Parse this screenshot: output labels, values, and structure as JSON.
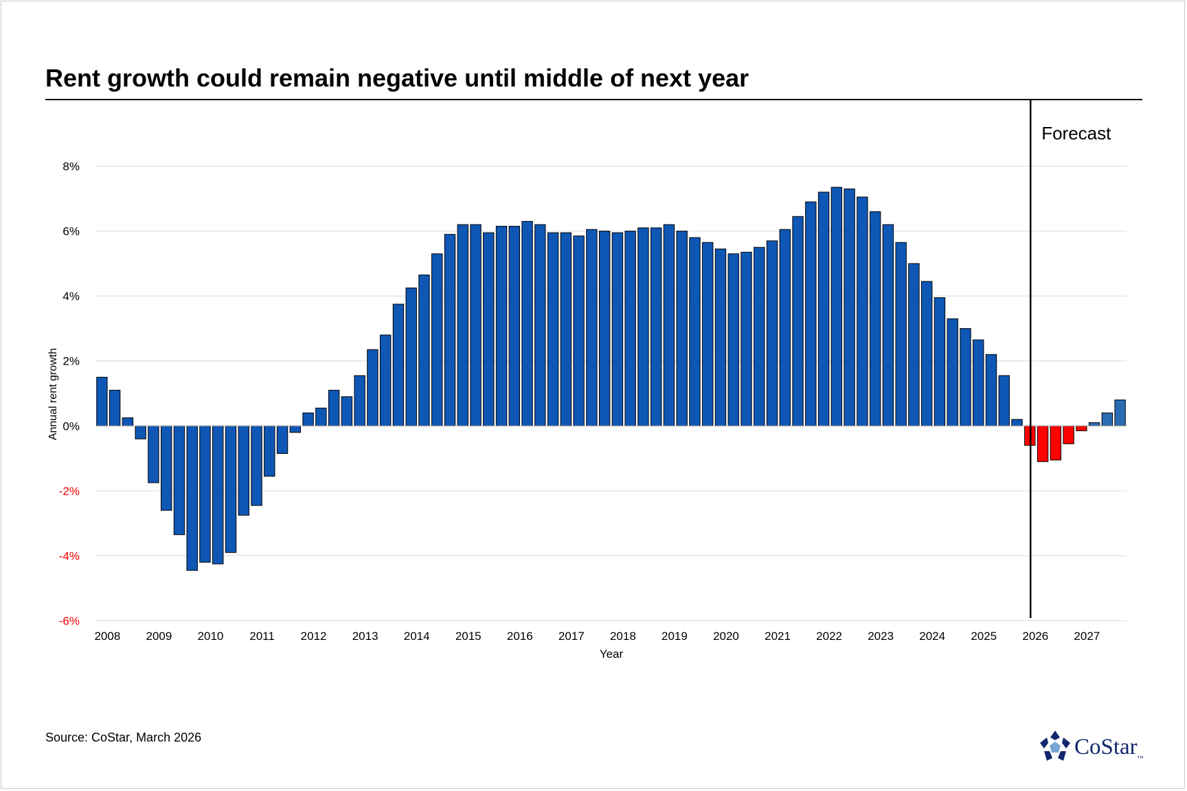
{
  "title": "Rent growth could remain negative until middle of next year",
  "source": "Source: CoStar, March 2026",
  "logo": {
    "text": "CoStar",
    "tm": "™",
    "color": "#12266b"
  },
  "forecast_label": "Forecast",
  "colors": {
    "positive": "#0f57b5",
    "negative_forecast": "#ff0000",
    "negative_tick": "#ff0000",
    "forecast_positive": "#2b6db3"
  },
  "chart_data": {
    "type": "bar",
    "xlabel": "Year",
    "ylabel": "Annual rent growth",
    "ylim": [
      -6,
      9
    ],
    "yticks": [
      -6,
      -4,
      -2,
      0,
      2,
      4,
      6,
      8
    ],
    "ytick_labels": [
      "-6%",
      "-4%",
      "-2%",
      "0%",
      "2%",
      "4%",
      "6%",
      "8%"
    ],
    "xtick_labels": [
      "2008",
      "2009",
      "2010",
      "2011",
      "2012",
      "2013",
      "2014",
      "2015",
      "2016",
      "2017",
      "2018",
      "2019",
      "2020",
      "2021",
      "2022",
      "2023",
      "2024",
      "2025",
      "2026",
      "2027"
    ],
    "frequency": "quarterly",
    "start": "2008 Q1",
    "forecast_start": "2026 Q1",
    "grid": true,
    "values": [
      1.5,
      1.1,
      0.25,
      -0.4,
      -1.75,
      -2.6,
      -3.35,
      -4.45,
      -4.2,
      -4.25,
      -3.9,
      -2.75,
      -2.45,
      -1.55,
      -0.85,
      -0.2,
      0.4,
      0.55,
      1.1,
      0.9,
      1.55,
      2.35,
      2.8,
      3.75,
      4.25,
      4.65,
      5.3,
      5.9,
      6.2,
      6.2,
      5.95,
      6.15,
      6.15,
      6.3,
      6.2,
      5.95,
      5.95,
      5.85,
      6.05,
      6.0,
      5.95,
      6.0,
      6.1,
      6.1,
      6.2,
      6.0,
      5.8,
      5.65,
      5.45,
      5.3,
      5.35,
      5.5,
      5.7,
      6.05,
      6.45,
      6.9,
      7.2,
      7.35,
      7.3,
      7.05,
      6.6,
      6.2,
      5.65,
      5.0,
      4.45,
      3.95,
      3.3,
      3.0,
      2.65,
      2.2,
      1.55,
      0.2,
      -0.6,
      -1.1,
      -1.05,
      -0.55,
      -0.15,
      0.1,
      0.4,
      0.8
    ]
  }
}
